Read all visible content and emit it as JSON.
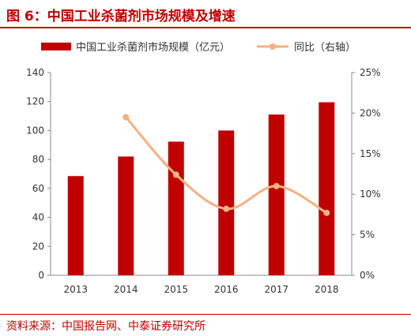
{
  "header": {
    "title": "图 6：中国工业杀菌剂市场规模及增速"
  },
  "footer": {
    "source": "资料来源：中国报告网、中泰证券研究所"
  },
  "chart_data": {
    "type": "bar",
    "categories": [
      "2013",
      "2014",
      "2015",
      "2016",
      "2017",
      "2018"
    ],
    "series": [
      {
        "name": "中国工业杀菌剂市场规模（亿元）",
        "type": "bar",
        "axis": "left",
        "color": "#c00000",
        "values": [
          68.5,
          82,
          92.3,
          100,
          111,
          119.5
        ]
      },
      {
        "name": "同比（右轴）",
        "type": "line",
        "axis": "right",
        "color": "#f4b183",
        "values": [
          null,
          0.195,
          0.124,
          0.082,
          0.11,
          0.077
        ]
      }
    ],
    "y_left": {
      "min": 0,
      "max": 140,
      "ticks": [
        "0",
        "20",
        "40",
        "60",
        "80",
        "100",
        "120",
        "140"
      ]
    },
    "y_right": {
      "min": 0,
      "max": 0.25,
      "ticks": [
        "0%",
        "5%",
        "10%",
        "15%",
        "20%",
        "25%"
      ]
    },
    "legend": "top",
    "grid": false
  }
}
